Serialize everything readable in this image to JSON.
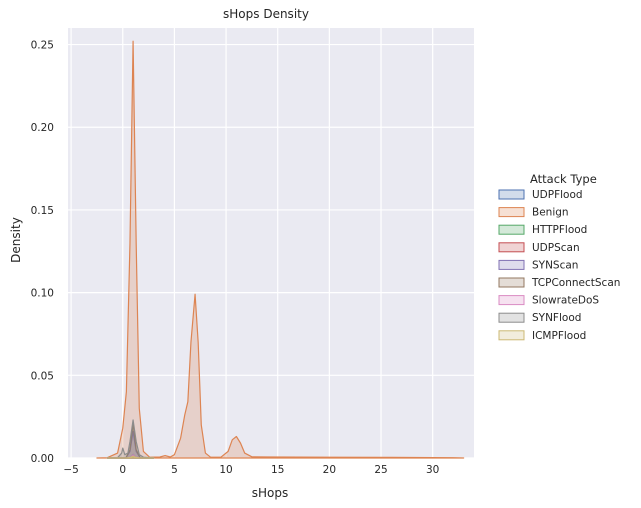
{
  "chart_data": {
    "type": "area",
    "title": "sHops Density",
    "xlabel": "sHops",
    "ylabel": "Density",
    "xlim": [
      -5.3,
      34
    ],
    "ylim": [
      0,
      0.26
    ],
    "x_ticks": [
      -5,
      0,
      5,
      10,
      15,
      20,
      25,
      30
    ],
    "y_ticks": [
      0.0,
      0.05,
      0.1,
      0.15,
      0.2,
      0.25
    ],
    "x_tick_labels": [
      "−5",
      "0",
      "5",
      "10",
      "15",
      "20",
      "25",
      "30"
    ],
    "y_tick_labels": [
      "0.00",
      "0.05",
      "0.10",
      "0.15",
      "0.20",
      "0.25"
    ],
    "grid": true,
    "legend": {
      "title": "Attack Type",
      "placement": "right"
    },
    "series": [
      {
        "name": "UDPFlood",
        "color": "#4c72b0",
        "points": [
          [
            -1.5,
            0
          ],
          [
            0.4,
            0
          ],
          [
            0.8,
            0.0008
          ],
          [
            1.0,
            0.0022
          ],
          [
            1.2,
            0.0008
          ],
          [
            1.6,
            0
          ],
          [
            3,
            0
          ]
        ]
      },
      {
        "name": "Benign",
        "color": "#dd8452",
        "points": [
          [
            -2.5,
            0
          ],
          [
            -1.5,
            0.0002
          ],
          [
            -0.5,
            0.003
          ],
          [
            0,
            0.018
          ],
          [
            0.35,
            0.04
          ],
          [
            0.7,
            0.13
          ],
          [
            1.0,
            0.252
          ],
          [
            1.3,
            0.13
          ],
          [
            1.6,
            0.03
          ],
          [
            2.0,
            0.004
          ],
          [
            2.6,
            0.0005
          ],
          [
            3.6,
            0.0006
          ],
          [
            4.1,
            0.0015
          ],
          [
            4.6,
            0.0006
          ],
          [
            5.0,
            0.002
          ],
          [
            5.6,
            0.012
          ],
          [
            6.0,
            0.026
          ],
          [
            6.3,
            0.034
          ],
          [
            6.6,
            0.07
          ],
          [
            7.0,
            0.099
          ],
          [
            7.3,
            0.07
          ],
          [
            7.6,
            0.02
          ],
          [
            8.0,
            0.003
          ],
          [
            8.5,
            0.0005
          ],
          [
            9.5,
            0.0005
          ],
          [
            10.2,
            0.004
          ],
          [
            10.6,
            0.011
          ],
          [
            11.0,
            0.013
          ],
          [
            11.4,
            0.009
          ],
          [
            11.8,
            0.003
          ],
          [
            12.5,
            0.0007
          ],
          [
            14,
            0.0006
          ],
          [
            20,
            0.0005
          ],
          [
            26,
            0.0004
          ],
          [
            32,
            0.0002
          ],
          [
            33,
            0
          ]
        ]
      },
      {
        "name": "HTTPFlood",
        "color": "#55a868",
        "points": [
          [
            -1.5,
            0
          ],
          [
            0.4,
            0
          ],
          [
            0.8,
            0.0006
          ],
          [
            1.0,
            0.0015
          ],
          [
            1.2,
            0.0006
          ],
          [
            1.6,
            0
          ],
          [
            3,
            0
          ]
        ]
      },
      {
        "name": "UDPScan",
        "color": "#c44e52",
        "points": [
          [
            -1.5,
            0
          ],
          [
            0.4,
            0
          ],
          [
            0.8,
            0.0005
          ],
          [
            1.0,
            0.0012
          ],
          [
            1.2,
            0.0005
          ],
          [
            1.6,
            0
          ],
          [
            3,
            0
          ]
        ]
      },
      {
        "name": "SYNScan",
        "color": "#8172b3",
        "points": [
          [
            -1.5,
            0
          ],
          [
            0.3,
            0
          ],
          [
            0.7,
            0.004
          ],
          [
            1.0,
            0.016
          ],
          [
            1.3,
            0.004
          ],
          [
            1.7,
            0
          ],
          [
            3,
            0
          ]
        ]
      },
      {
        "name": "TCPConnectScan",
        "color": "#937860",
        "points": [
          [
            -1.5,
            0
          ],
          [
            0.3,
            0
          ],
          [
            0.7,
            0.005
          ],
          [
            1.0,
            0.021
          ],
          [
            1.3,
            0.005
          ],
          [
            1.7,
            0
          ],
          [
            3,
            0
          ]
        ]
      },
      {
        "name": "SlowrateDoS",
        "color": "#da8bc3",
        "points": [
          [
            -1.5,
            0
          ],
          [
            0.4,
            0
          ],
          [
            0.8,
            0.0008
          ],
          [
            1.0,
            0.002
          ],
          [
            1.2,
            0.0008
          ],
          [
            1.6,
            0
          ],
          [
            3,
            0
          ]
        ]
      },
      {
        "name": "SYNFlood",
        "color": "#8c8c8c",
        "points": [
          [
            -1.5,
            0
          ],
          [
            -0.5,
            0.0002
          ],
          [
            -0.1,
            0.003
          ],
          [
            0.0,
            0.006
          ],
          [
            0.2,
            0.002
          ],
          [
            0.5,
            0.003
          ],
          [
            0.7,
            0.01
          ],
          [
            1.0,
            0.023
          ],
          [
            1.3,
            0.01
          ],
          [
            1.6,
            0.002
          ],
          [
            2.0,
            0.0005
          ],
          [
            3,
            0
          ]
        ]
      },
      {
        "name": "ICMPFlood",
        "color": "#ccb974",
        "points": [
          [
            -1.5,
            0
          ],
          [
            0.4,
            0
          ],
          [
            0.8,
            0.0005
          ],
          [
            1.0,
            0.001
          ],
          [
            1.2,
            0.0005
          ],
          [
            1.6,
            0
          ],
          [
            3,
            0
          ]
        ]
      }
    ]
  }
}
